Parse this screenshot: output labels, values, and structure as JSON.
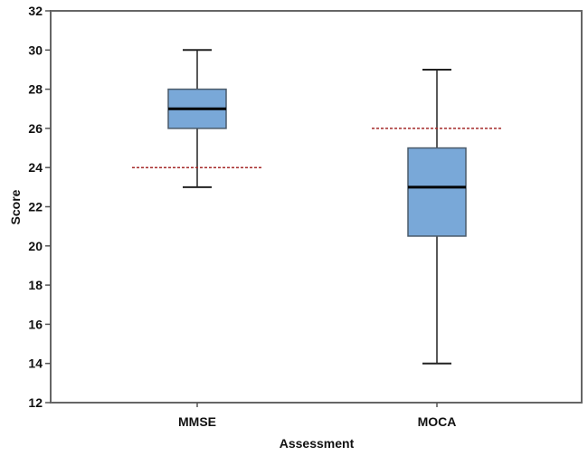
{
  "chart_data": {
    "type": "boxplot",
    "title": "",
    "xlabel": "Assessment",
    "ylabel": "Score",
    "ylim": [
      12,
      32
    ],
    "yticks": [
      12,
      14,
      16,
      18,
      20,
      22,
      24,
      26,
      28,
      30,
      32
    ],
    "ytick_labels": [
      "12",
      "14",
      "16",
      "18",
      "20",
      "22",
      "24",
      "26",
      "28",
      "30",
      "32"
    ],
    "categories": [
      "MMSE",
      "MOCA"
    ],
    "boxes": [
      {
        "name": "MMSE",
        "whisker_low": 23,
        "q1": 26,
        "median": 27,
        "q3": 28,
        "whisker_high": 30,
        "cutoff": 24
      },
      {
        "name": "MOCA",
        "whisker_low": 14,
        "q1": 20.5,
        "median": 23,
        "q3": 25,
        "whisker_high": 29,
        "cutoff": 26
      }
    ],
    "grid": false,
    "colors": {
      "box_fill": "#79a8d8",
      "box_stroke": "#4a5a6a",
      "median": "#000000",
      "whisker": "#222222",
      "cutoff_line": "#a52a2a",
      "frame": "#666666"
    }
  }
}
